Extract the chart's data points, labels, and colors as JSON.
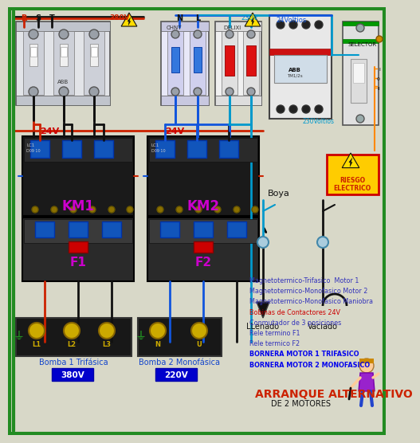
{
  "title": "ARRANQUE ALTERNATIVO",
  "title2": "DE 2 MOTORES",
  "background_color": "#d8d8c8",
  "border_color": "#228B22",
  "legend_items": [
    "Magnetotermico-Trifasico  Motor 1",
    "Magnetotermico-Monofasico Motor 2",
    "Magnetotermico-Monofasico Maniobra",
    "Bobinas de Contactores 24V",
    "Conmutador de 3 posiciones",
    "Rele termino F1",
    "Rele termico F2",
    "BORNERA MOTOR 1 TRIFASICO",
    "BORNERA MOTOR 2 MONOFASICO"
  ],
  "legend_colors": [
    "#3333bb",
    "#3333bb",
    "#3333bb",
    "#cc0000",
    "#3333bb",
    "#3333bb",
    "#3333bb",
    "#0000ee",
    "#0000ee"
  ],
  "legend_bold": [
    false,
    false,
    false,
    false,
    false,
    false,
    false,
    true,
    true
  ],
  "voltage_labels": [
    "380V",
    "220V"
  ],
  "km_labels": [
    "KM1",
    "KM2"
  ],
  "km_color": "#cc00cc",
  "f_labels": [
    "F1",
    "F2"
  ],
  "f_color": "#cc00cc",
  "label_24v": "24V",
  "label_24v_color": "#cc0000",
  "bomba1_label": "Bomba 1 Trifásica",
  "bomba2_label": "Bomba 2 Monofásica",
  "bomba_label_color": "#1144cc",
  "boya_label": "Boya",
  "llenado_label": "LLenado",
  "vaciado_label": "Vaciado",
  "riesgo_label": "RIESGO\nELECTRICO",
  "riesgo_color": "#cc0000",
  "selector_label": "SELECTOR",
  "voltage_380": "380V",
  "voltage_230_1": "230V",
  "voltage_24v_label": "24Voltios",
  "voltage_230v_bottom": "230Voltios"
}
